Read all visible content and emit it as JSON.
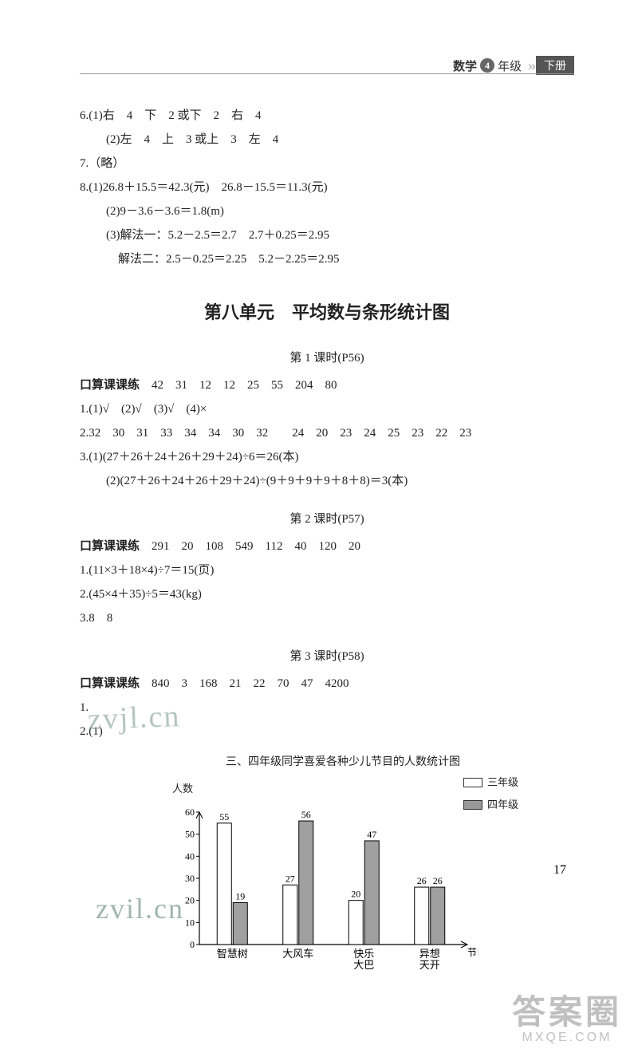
{
  "header": {
    "subject": "数学",
    "grade_num": "4",
    "grade_suffix": "年级",
    "volume": "下册"
  },
  "top_answers": {
    "q6_1": "6.(1)右　4　下　2 或下　2　右　4",
    "q6_2": "(2)左　4　上　3 或上　3　左　4",
    "q7": "7.（略）",
    "q8_1": "8.(1)26.8＋15.5＝42.3(元)　26.8－15.5＝11.3(元)",
    "q8_2": "(2)9－3.6－3.6＝1.8(m)",
    "q8_3a": "(3)解法一：5.2－2.5＝2.7　2.7＋0.25＝2.95",
    "q8_3b": "解法二：2.5－0.25＝2.25　5.2－2.25＝2.95"
  },
  "unit_title": "第八单元　平均数与条形统计图",
  "lesson1": {
    "title": "第 1 课时(P56)",
    "oral_label": "口算课课练",
    "oral": "　42　31　12　12　25　55　204　80",
    "q1": "1.(1)√　(2)√　(3)√　(4)×",
    "q2": "2.32　30　31　33　34　34　30　32　　24　20　23　24　25　23　22　23",
    "q3a": "3.(1)(27＋26＋24＋26＋29＋24)÷6＝26(本)",
    "q3b": "(2)(27＋26＋24＋26＋29＋24)÷(9＋9＋9＋9＋8＋8)＝3(本)"
  },
  "lesson2": {
    "title": "第 2 课时(P57)",
    "oral_label": "口算课课练",
    "oral": "　291　20　108　549　112　40　120　20",
    "q1": "1.(11×3＋18×4)÷7＝15(页)",
    "q2": "2.(45×4＋35)÷5＝43(kg)",
    "q3": "3.8　8"
  },
  "lesson3": {
    "title": "第 3 课时(P58)",
    "oral_label": "口算课课练",
    "oral": "　840　3　168　21　22　70　47　4200",
    "q1": "1.",
    "q2_prefix": "2.(1)",
    "chart": {
      "title": "三、四年级同学喜爱各种少儿节目的人数统计图",
      "y_label": "人数",
      "x_label": "节目",
      "legend": {
        "a": "三年级",
        "b": "四年级"
      },
      "categories": [
        "智慧树",
        "大风车",
        "快乐\n大巴",
        "异想\n天开"
      ],
      "series_a": [
        55,
        27,
        20,
        26
      ],
      "series_b": [
        19,
        56,
        47,
        26
      ],
      "y_ticks": [
        0,
        10,
        20,
        30,
        40,
        50,
        60
      ],
      "ylim": [
        0,
        60
      ],
      "colors": {
        "series_a_fill": "#ffffff",
        "series_b_fill": "#a0a0a0",
        "axis": "#000000",
        "text": "#000000"
      }
    }
  },
  "page_number": "17",
  "watermarks": {
    "w1": "zvjl.cn",
    "w2": "zvil.cn"
  },
  "footer": {
    "big": "答案圈",
    "small": "MXQE.COM"
  }
}
